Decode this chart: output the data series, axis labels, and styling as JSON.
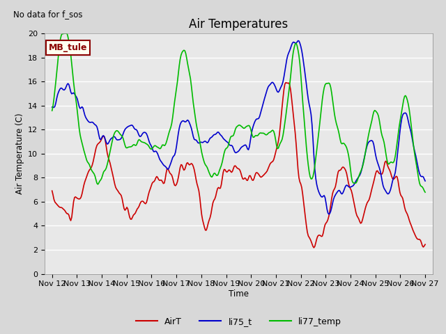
{
  "title": "Air Temperatures",
  "ylabel": "Air Temperature (C)",
  "xlabel": "Time",
  "annotation_text": "No data for f_sos",
  "legend_label_text": "MB_tule",
  "ylim": [
    0,
    20
  ],
  "background_color": "#e8e8e8",
  "grid_color": "#ffffff",
  "fig_facecolor": "#d8d8d8",
  "series": {
    "AirT": {
      "color": "#cc0000",
      "linewidth": 1.2
    },
    "li75_t": {
      "color": "#0000cc",
      "linewidth": 1.2
    },
    "li77_temp": {
      "color": "#00bb00",
      "linewidth": 1.2
    }
  },
  "x_tick_labels": [
    "Nov 12",
    "Nov 13",
    "Nov 14",
    "Nov 15",
    "Nov 16",
    "Nov 17",
    "Nov 18",
    "Nov 19",
    "Nov 20",
    "Nov 21",
    "Nov 22",
    "Nov 23",
    "Nov 24",
    "Nov 25",
    "Nov 26",
    "Nov 27"
  ],
  "yticks": [
    0,
    2,
    4,
    6,
    8,
    10,
    12,
    14,
    16,
    18,
    20
  ]
}
